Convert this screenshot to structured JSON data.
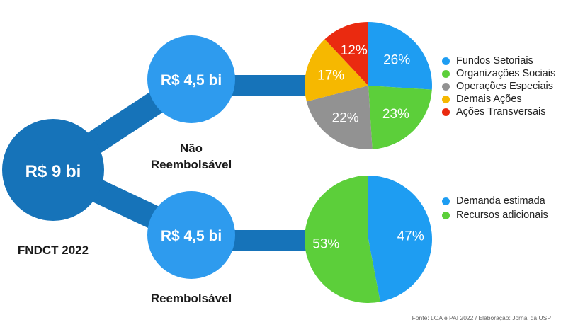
{
  "total": {
    "value": "R$ 9 bi",
    "label": "FNDCT 2022"
  },
  "branches": [
    {
      "value": "R$ 4,5 bi",
      "label": [
        "Não",
        "Reembolsável"
      ]
    },
    {
      "value": "R$ 4,5 bi",
      "label": [
        "Reembolsável"
      ]
    }
  ],
  "chart_data": [
    {
      "type": "pie",
      "categories": [
        "Fundos Setoriais",
        "Organizações Sociais",
        "Operações Especiais",
        "Demais Ações",
        "Ações Transversais"
      ],
      "values": [
        26,
        23,
        22,
        17,
        12
      ],
      "labels": [
        "26%",
        "23%",
        "22%",
        "17%",
        "12%"
      ],
      "colors": [
        "#1e9df2",
        "#5ccf3a",
        "#929292",
        "#f6b800",
        "#ea2a10"
      ],
      "legend": "right"
    },
    {
      "type": "pie",
      "categories": [
        "Demanda estimada",
        "Recursos adicionais"
      ],
      "values": [
        47,
        53
      ],
      "labels": [
        "47%",
        "53%"
      ],
      "colors": [
        "#1e9df2",
        "#5ccf3a"
      ],
      "legend": "right"
    }
  ],
  "colors": {
    "dark_blue": "#1673b9",
    "light_blue": "#2e9bee",
    "text": "#1a1a1a",
    "white": "#ffffff"
  },
  "source": "Fonte: LOA e PAI 2022 / Elaboração: Jornal da USP"
}
